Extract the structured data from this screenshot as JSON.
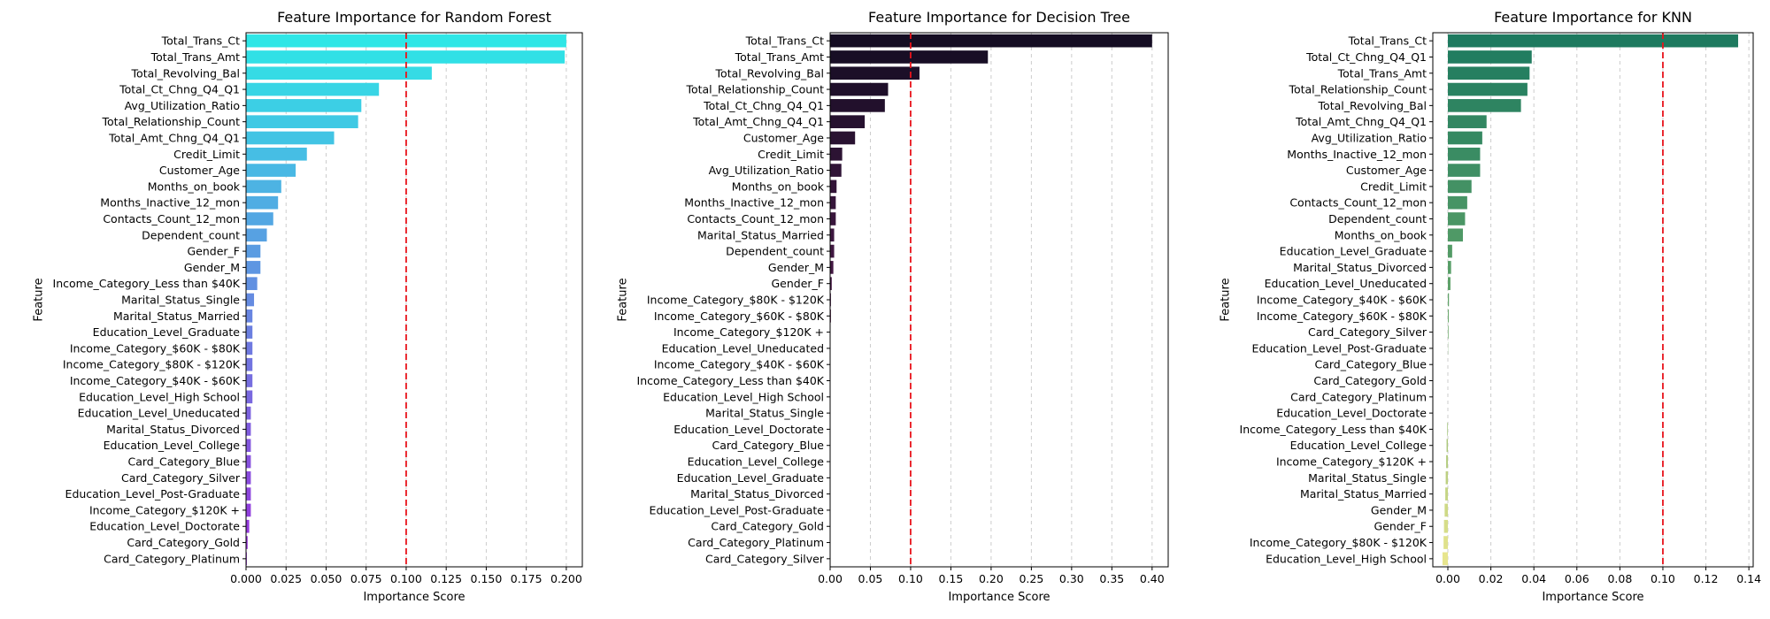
{
  "chart_data": [
    {
      "type": "bar",
      "orientation": "horizontal",
      "title": "Feature Importance for Random Forest",
      "xlabel": "Importance Score",
      "ylabel": "Feature",
      "xlim": [
        0,
        0.21
      ],
      "xticks": [
        0.0,
        0.025,
        0.05,
        0.075,
        0.1,
        0.125,
        0.15,
        0.175,
        0.2
      ],
      "xtick_labels": [
        "0.000",
        "0.025",
        "0.050",
        "0.075",
        "0.100",
        "0.125",
        "0.150",
        "0.175",
        "0.200"
      ],
      "threshold": 0.1,
      "grid": "x-dashed",
      "palette": "cool",
      "categories": [
        "Total_Trans_Ct",
        "Total_Trans_Amt",
        "Total_Revolving_Bal",
        "Total_Ct_Chng_Q4_Q1",
        "Avg_Utilization_Ratio",
        "Total_Relationship_Count",
        "Total_Amt_Chng_Q4_Q1",
        "Credit_Limit",
        "Customer_Age",
        "Months_on_book",
        "Months_Inactive_12_mon",
        "Contacts_Count_12_mon",
        "Dependent_count",
        "Gender_F",
        "Gender_M",
        "Income_Category_Less than $40K",
        "Marital_Status_Single",
        "Marital_Status_Married",
        "Education_Level_Graduate",
        "Income_Category_$60K - $80K",
        "Income_Category_$80K - $120K",
        "Income_Category_$40K - $60K",
        "Education_Level_High School",
        "Education_Level_Uneducated",
        "Marital_Status_Divorced",
        "Education_Level_College",
        "Card_Category_Blue",
        "Card_Category_Silver",
        "Education_Level_Post-Graduate",
        "Income_Category_$120K +",
        "Education_Level_Doctorate",
        "Card_Category_Gold",
        "Card_Category_Platinum"
      ],
      "values": [
        0.2,
        0.199,
        0.116,
        0.083,
        0.072,
        0.07,
        0.055,
        0.038,
        0.031,
        0.022,
        0.02,
        0.017,
        0.013,
        0.009,
        0.009,
        0.007,
        0.005,
        0.004,
        0.004,
        0.004,
        0.004,
        0.004,
        0.004,
        0.003,
        0.003,
        0.003,
        0.003,
        0.003,
        0.003,
        0.003,
        0.002,
        0.001,
        0.0005
      ]
    },
    {
      "type": "bar",
      "orientation": "horizontal",
      "title": "Feature Importance for Decision Tree",
      "xlabel": "Importance Score",
      "ylabel": "Feature",
      "xlim": [
        0,
        0.42
      ],
      "xticks": [
        0.0,
        0.05,
        0.1,
        0.15,
        0.2,
        0.25,
        0.3,
        0.35,
        0.4
      ],
      "xtick_labels": [
        "0.00",
        "0.05",
        "0.10",
        "0.15",
        "0.20",
        "0.25",
        "0.30",
        "0.35",
        "0.40"
      ],
      "threshold": 0.1,
      "grid": "x-dashed",
      "palette": "rocket",
      "categories": [
        "Total_Trans_Ct",
        "Total_Trans_Amt",
        "Total_Revolving_Bal",
        "Total_Relationship_Count",
        "Total_Ct_Chng_Q4_Q1",
        "Total_Amt_Chng_Q4_Q1",
        "Customer_Age",
        "Credit_Limit",
        "Avg_Utilization_Ratio",
        "Months_on_book",
        "Months_Inactive_12_mon",
        "Contacts_Count_12_mon",
        "Marital_Status_Married",
        "Dependent_count",
        "Gender_M",
        "Gender_F",
        "Income_Category_$80K - $120K",
        "Income_Category_$60K - $80K",
        "Income_Category_$120K +",
        "Education_Level_Uneducated",
        "Income_Category_$40K - $60K",
        "Income_Category_Less than $40K",
        "Education_Level_High School",
        "Marital_Status_Single",
        "Education_Level_Doctorate",
        "Card_Category_Blue",
        "Education_Level_College",
        "Education_Level_Graduate",
        "Marital_Status_Divorced",
        "Education_Level_Post-Graduate",
        "Card_Category_Gold",
        "Card_Category_Platinum",
        "Card_Category_Silver"
      ],
      "values": [
        0.4,
        0.196,
        0.111,
        0.072,
        0.068,
        0.043,
        0.031,
        0.015,
        0.014,
        0.008,
        0.007,
        0.007,
        0.005,
        0.005,
        0.004,
        0.002,
        0.001,
        0.001,
        0.0005,
        0,
        0,
        0,
        0,
        0,
        0,
        0,
        0,
        0,
        0,
        0,
        0,
        0,
        0
      ]
    },
    {
      "type": "bar",
      "orientation": "horizontal",
      "title": "Feature Importance for KNN",
      "xlabel": "Importance Score",
      "ylabel": "Feature",
      "xlim": [
        -0.007,
        0.142
      ],
      "xticks": [
        0.0,
        0.02,
        0.04,
        0.06,
        0.08,
        0.1,
        0.12,
        0.14
      ],
      "xtick_labels": [
        "0.00",
        "0.02",
        "0.04",
        "0.06",
        "0.08",
        "0.10",
        "0.12",
        "0.14"
      ],
      "threshold": 0.1,
      "grid": "x-dashed",
      "palette": "summer",
      "categories": [
        "Total_Trans_Ct",
        "Total_Ct_Chng_Q4_Q1",
        "Total_Trans_Amt",
        "Total_Relationship_Count",
        "Total_Revolving_Bal",
        "Total_Amt_Chng_Q4_Q1",
        "Avg_Utilization_Ratio",
        "Months_Inactive_12_mon",
        "Customer_Age",
        "Credit_Limit",
        "Contacts_Count_12_mon",
        "Dependent_count",
        "Months_on_book",
        "Education_Level_Graduate",
        "Marital_Status_Divorced",
        "Education_Level_Uneducated",
        "Income_Category_$40K - $60K",
        "Income_Category_$60K - $80K",
        "Card_Category_Silver",
        "Education_Level_Post-Graduate",
        "Card_Category_Blue",
        "Card_Category_Gold",
        "Card_Category_Platinum",
        "Education_Level_Doctorate",
        "Income_Category_Less than $40K",
        "Education_Level_College",
        "Income_Category_$120K +",
        "Marital_Status_Single",
        "Marital_Status_Married",
        "Gender_M",
        "Gender_F",
        "Income_Category_$80K - $120K",
        "Education_Level_High School"
      ],
      "values": [
        0.135,
        0.039,
        0.038,
        0.037,
        0.034,
        0.018,
        0.016,
        0.015,
        0.015,
        0.011,
        0.009,
        0.008,
        0.007,
        0.002,
        0.0015,
        0.0012,
        0.0005,
        0.0004,
        0.0003,
        0.0001,
        0,
        0,
        0,
        0,
        -0.0003,
        -0.0006,
        -0.0008,
        -0.001,
        -0.0012,
        -0.0015,
        -0.0018,
        -0.002,
        -0.0025
      ]
    }
  ]
}
